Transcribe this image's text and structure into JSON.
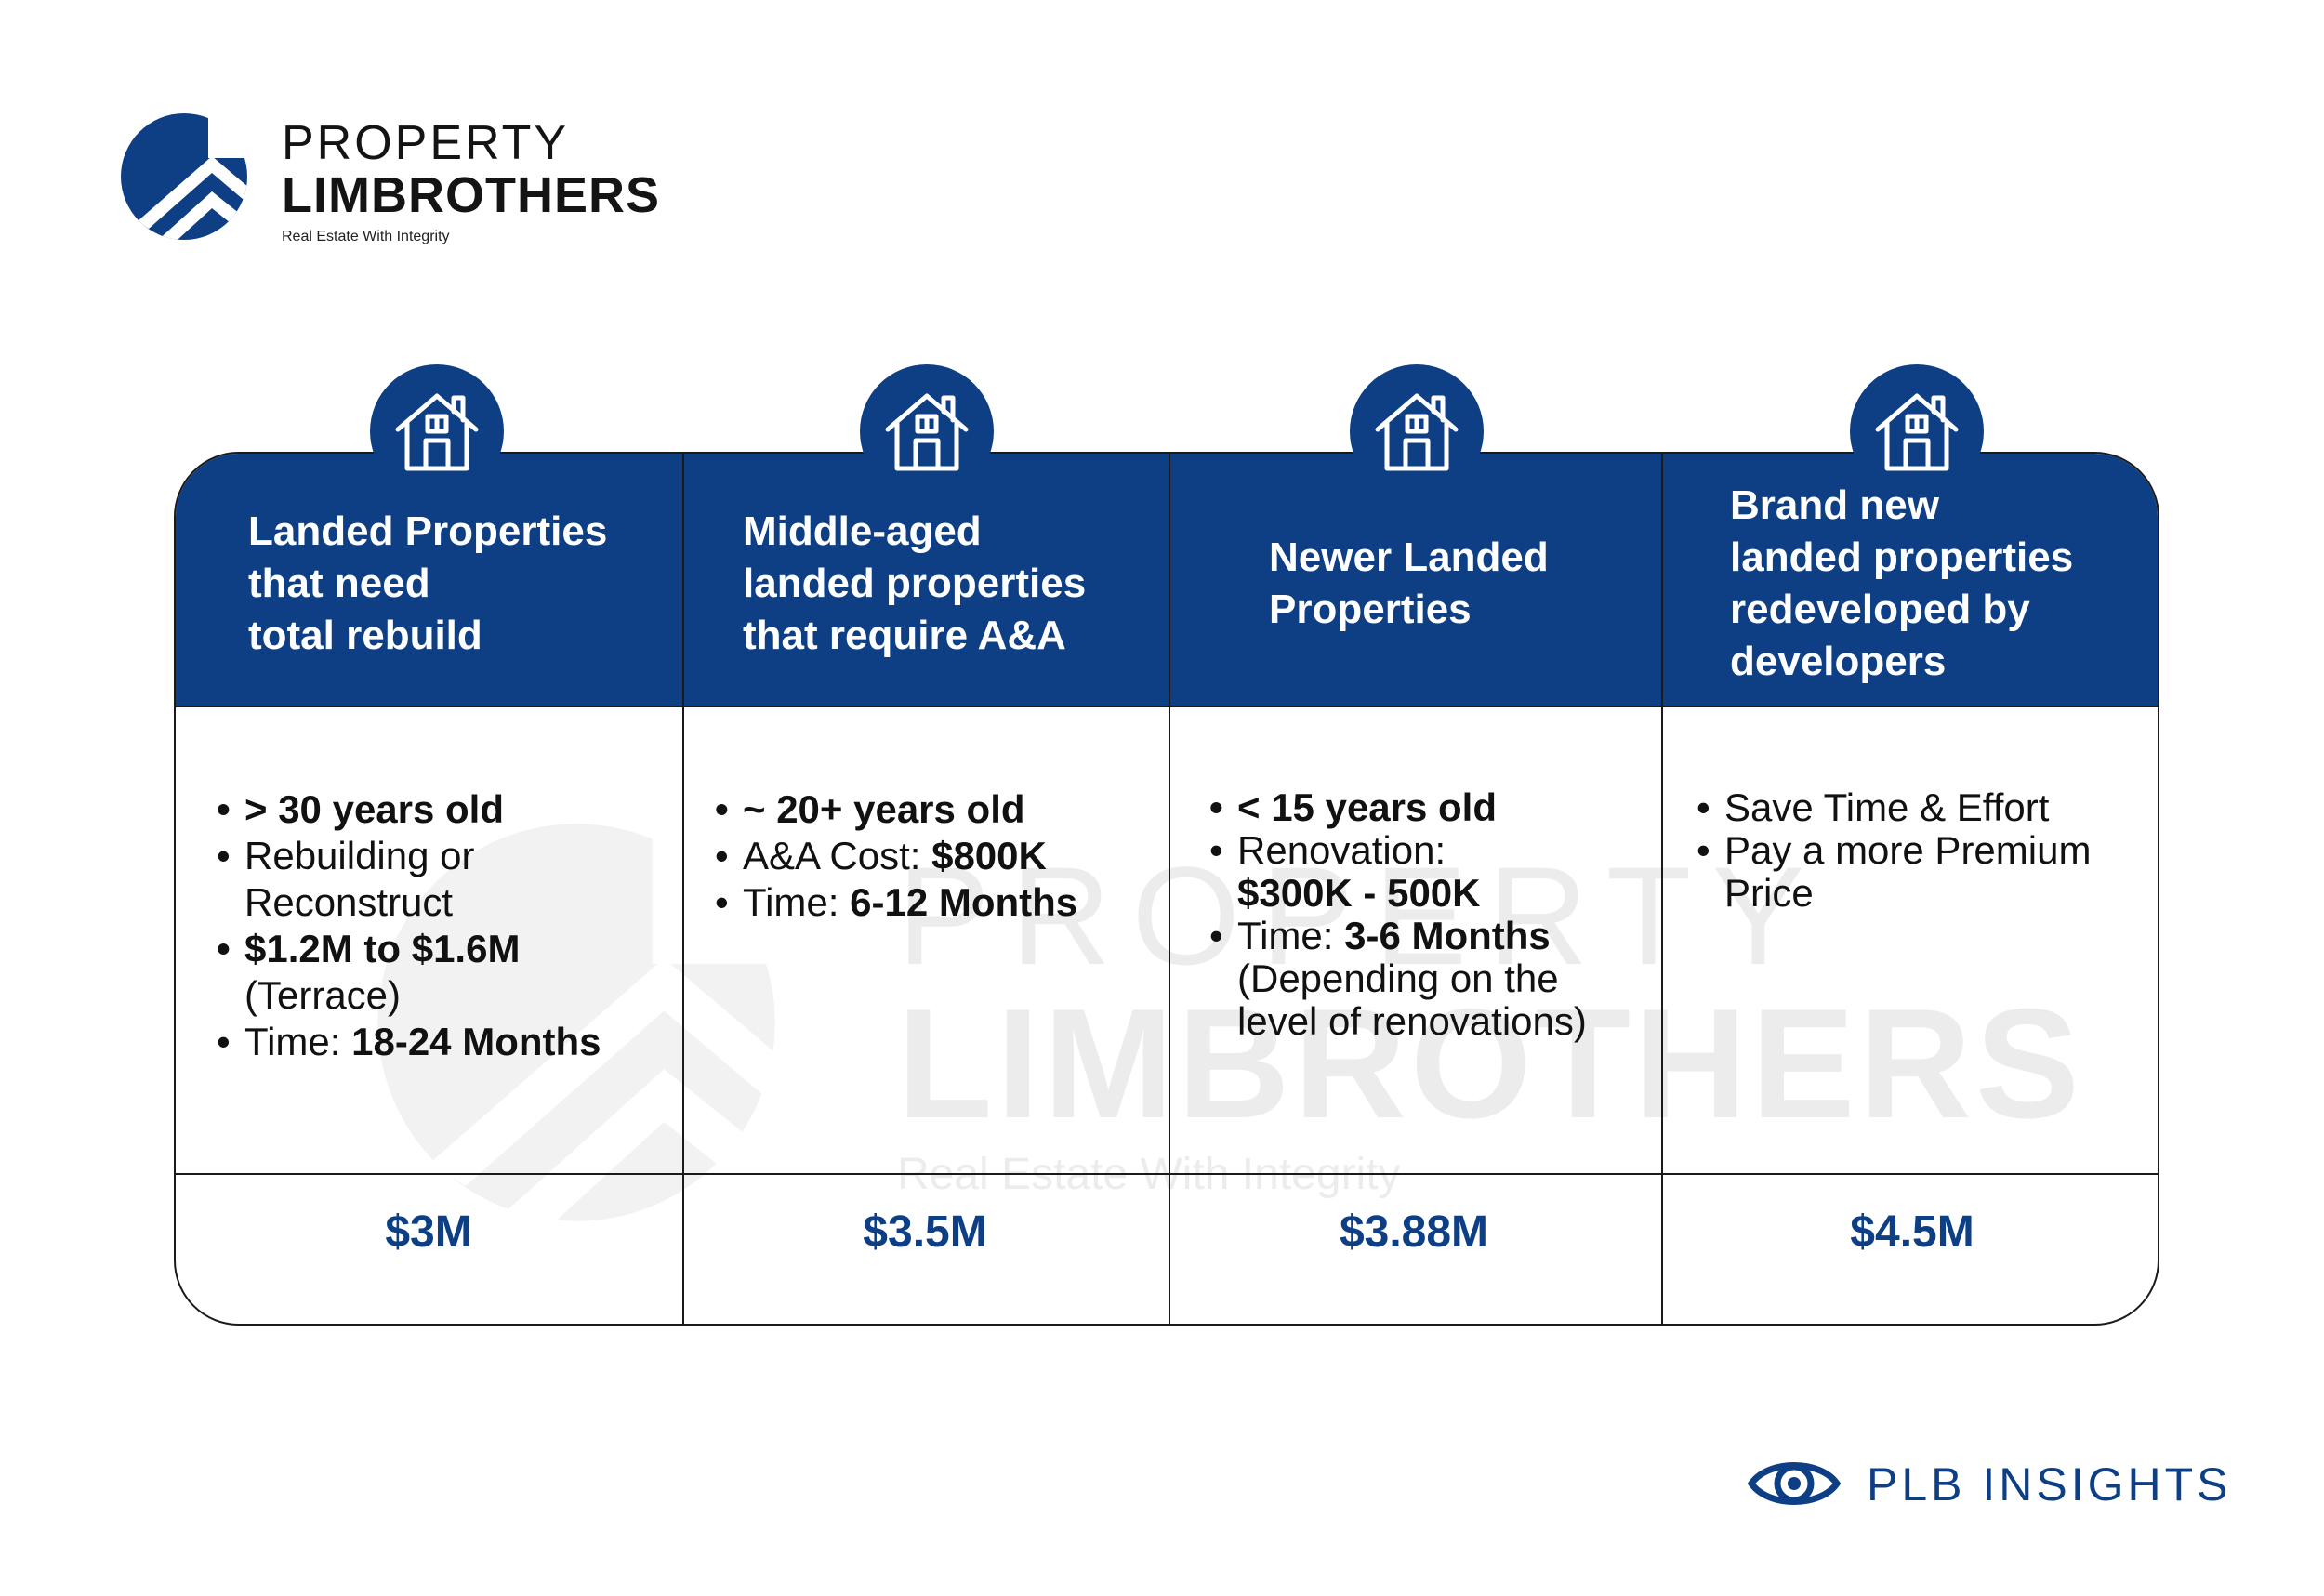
{
  "brand": {
    "line1": "PROPERTY",
    "line2": "LIMBROTHERS",
    "tagline": "Real Estate With Integrity",
    "logo_icon": "roof-chevron-logo"
  },
  "watermark": {
    "line1": "PROPERTY",
    "line2": "LIMBROTHERS",
    "line3": "Real Estate With Integrity"
  },
  "colors": {
    "brand_navy": "#0e3f84",
    "text": "#111111",
    "watermark": "#ececec"
  },
  "columns": [
    {
      "icon": "house-icon",
      "title_lines": [
        "Landed Properties",
        "that need",
        "total rebuild"
      ],
      "price": "$3M"
    },
    {
      "icon": "house-icon",
      "title_lines": [
        "Middle-aged",
        "landed properties",
        "that require A&A"
      ],
      "price": "$3.5M"
    },
    {
      "icon": "house-icon",
      "title_lines": [
        "Newer Landed",
        "Properties"
      ],
      "price": "$3.88M"
    },
    {
      "icon": "house-icon",
      "title_lines": [
        "Brand new",
        "landed properties",
        "redeveloped by",
        "developers"
      ],
      "price": "$4.5M"
    }
  ],
  "details": {
    "col1": {
      "b1": "> 30 years old",
      "b2_line1": "Rebuilding or",
      "b2_line2": "Reconstruct",
      "b3": "$1.2M to $1.6M",
      "b3_cont": "(Terrace)",
      "b4_label": "Time: ",
      "b4_value": "18-24 Months"
    },
    "col2": {
      "b1": "~ 20+ years old",
      "b2_label": "A&A Cost: ",
      "b2_value": "$800K",
      "b3_label": "Time: ",
      "b3_value": "6-12 Months"
    },
    "col3": {
      "b1": "< 15 years old",
      "b2_label": "Renovation:",
      "b2_value": "$300K - 500K",
      "b3_label": "Time: ",
      "b3_value": "3-6 Months",
      "b3_cont1": "(Depending on the",
      "b3_cont2": "level of renovations)"
    },
    "col4": {
      "b1": "Save Time & Effort",
      "b2_line1": "Pay a more Premium",
      "b2_line2": "Price"
    }
  },
  "footer": {
    "label": "PLB INSIGHTS",
    "icon": "eye-icon"
  }
}
